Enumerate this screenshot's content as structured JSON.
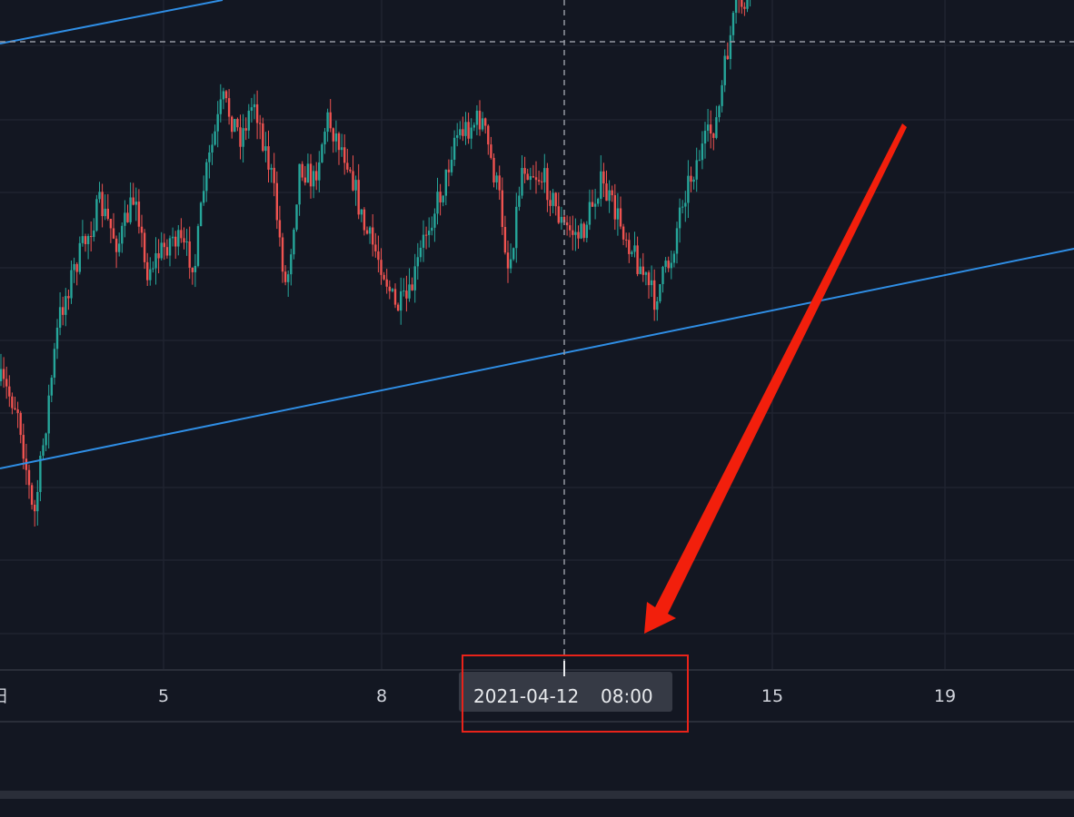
{
  "x_axis": {
    "labels": [
      "日",
      "5",
      "8",
      "15",
      "19"
    ]
  },
  "crosshair": {
    "date": "2021-04-12",
    "time": "08:00"
  }
}
